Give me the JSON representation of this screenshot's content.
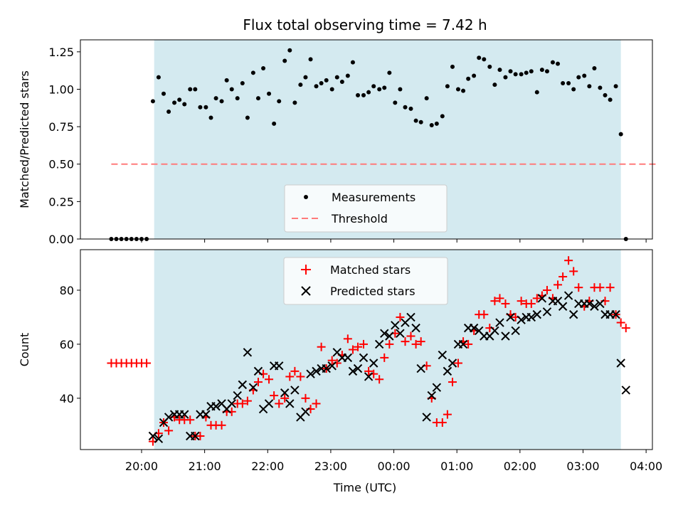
{
  "chart_data": {
    "title": "Flux total observing time = 7.42 h",
    "xlabel": "Time (UTC)",
    "x_tick_labels": [
      "20:00",
      "21:00",
      "22:00",
      "23:00",
      "00:00",
      "01:00",
      "02:00",
      "03:00",
      "04:00"
    ],
    "x_tick_hours": [
      20,
      21,
      22,
      23,
      24,
      25,
      26,
      27,
      28
    ],
    "xlim": [
      19.03,
      28.1
    ],
    "shaded_region": [
      20.2,
      27.6
    ],
    "colors": {
      "shade": "#d4eaf0",
      "measurement": "#000000",
      "threshold": "#ff7b7b",
      "matched": "#ff0000",
      "predicted": "#000000"
    },
    "panels": [
      {
        "type": "scatter",
        "ylabel": "Matched/Predicted stars",
        "ylim": [
          0,
          1.33
        ],
        "y_ticks": [
          0,
          0.25,
          0.5,
          0.75,
          1.0,
          1.25
        ],
        "y_tick_labels": [
          "0.00",
          "0.25",
          "0.50",
          "0.75",
          "1.00",
          "1.25"
        ],
        "threshold": {
          "y": 0.5,
          "x_range": [
            19.52,
            28.18
          ]
        },
        "legend": {
          "position": "lower-center",
          "entries": [
            "Measurements",
            "Threshold"
          ]
        },
        "series": [
          {
            "name": "Measurements",
            "marker": "dot",
            "x": [
              19.52,
              19.6,
              19.68,
              19.76,
              19.84,
              19.92,
              20.0,
              20.08,
              20.18,
              20.27,
              20.35,
              20.43,
              20.52,
              20.6,
              20.68,
              20.77,
              20.85,
              20.93,
              21.02,
              21.1,
              21.18,
              21.27,
              21.35,
              21.43,
              21.52,
              21.6,
              21.68,
              21.77,
              21.85,
              21.93,
              22.02,
              22.1,
              22.18,
              22.27,
              22.35,
              22.43,
              22.52,
              22.6,
              22.68,
              22.77,
              22.85,
              22.93,
              23.02,
              23.1,
              23.18,
              23.27,
              23.35,
              23.43,
              23.52,
              23.6,
              23.68,
              23.77,
              23.85,
              23.93,
              24.02,
              24.1,
              24.18,
              24.27,
              24.35,
              24.43,
              24.52,
              24.6,
              24.68,
              24.77,
              24.85,
              24.93,
              25.02,
              25.1,
              25.18,
              25.27,
              25.35,
              25.43,
              25.52,
              25.6,
              25.68,
              25.77,
              25.85,
              25.93,
              26.02,
              26.1,
              26.18,
              26.27,
              26.35,
              26.43,
              26.52,
              26.6,
              26.68,
              26.77,
              26.85,
              26.93,
              27.02,
              27.1,
              27.18,
              27.27,
              27.35,
              27.43,
              27.52,
              27.6,
              27.68
            ],
            "y": [
              0,
              0,
              0,
              0,
              0,
              0,
              0,
              0,
              0.92,
              1.08,
              0.97,
              0.85,
              0.91,
              0.93,
              0.9,
              1.0,
              1.0,
              0.88,
              0.88,
              0.81,
              0.94,
              0.92,
              1.06,
              1.0,
              0.94,
              1.04,
              0.81,
              1.11,
              0.94,
              1.14,
              0.97,
              0.77,
              0.92,
              1.19,
              1.26,
              0.91,
              1.03,
              1.08,
              1.2,
              1.02,
              1.04,
              1.06,
              1.0,
              1.08,
              1.05,
              1.09,
              1.18,
              0.96,
              0.96,
              0.98,
              1.02,
              1.0,
              1.01,
              1.11,
              0.91,
              1.0,
              0.88,
              0.87,
              0.79,
              0.78,
              0.94,
              0.76,
              0.77,
              0.82,
              1.02,
              1.15,
              1.0,
              0.99,
              1.07,
              1.09,
              1.21,
              1.2,
              1.15,
              1.03,
              1.13,
              1.08,
              1.12,
              1.1,
              1.1,
              1.11,
              1.12,
              0.98,
              1.13,
              1.12,
              1.18,
              1.17,
              1.04,
              1.04,
              1.0,
              1.08,
              1.09,
              1.02,
              1.14,
              1.01,
              0.96,
              0.93,
              1.02,
              0.7,
              0
            ]
          }
        ]
      },
      {
        "type": "scatter",
        "ylabel": "Count",
        "ylim": [
          21,
          95
        ],
        "y_ticks": [
          40,
          60,
          80
        ],
        "y_tick_labels": [
          "40",
          "60",
          "80"
        ],
        "legend": {
          "position": "upper-center",
          "entries": [
            "Matched stars",
            "Predicted stars"
          ]
        },
        "series": [
          {
            "name": "Matched stars",
            "marker": "plus",
            "x": [
              19.52,
              19.6,
              19.68,
              19.76,
              19.84,
              19.92,
              20.0,
              20.08,
              20.18,
              20.27,
              20.35,
              20.43,
              20.52,
              20.6,
              20.68,
              20.77,
              20.85,
              20.93,
              21.02,
              21.1,
              21.18,
              21.27,
              21.35,
              21.43,
              21.52,
              21.6,
              21.68,
              21.77,
              21.85,
              21.93,
              22.02,
              22.1,
              22.18,
              22.27,
              22.35,
              22.43,
              22.52,
              22.6,
              22.68,
              22.77,
              22.85,
              22.93,
              23.02,
              23.1,
              23.18,
              23.27,
              23.35,
              23.43,
              23.52,
              23.6,
              23.68,
              23.77,
              23.85,
              23.93,
              24.02,
              24.1,
              24.18,
              24.27,
              24.35,
              24.43,
              24.52,
              24.6,
              24.68,
              24.77,
              24.85,
              24.93,
              25.02,
              25.1,
              25.18,
              25.27,
              25.35,
              25.43,
              25.52,
              25.6,
              25.68,
              25.77,
              25.85,
              25.93,
              26.02,
              26.1,
              26.18,
              26.27,
              26.35,
              26.43,
              26.52,
              26.6,
              26.68,
              26.77,
              26.85,
              26.93,
              27.02,
              27.1,
              27.18,
              27.27,
              27.35,
              27.43,
              27.52,
              27.6,
              27.68
            ],
            "y": [
              53,
              53,
              53,
              53,
              53,
              53,
              53,
              53,
              24,
              27,
              31,
              28,
              33,
              32,
              32,
              32,
              26,
              26,
              33,
              30,
              30,
              30,
              35,
              35,
              38,
              38,
              39,
              43,
              46,
              49,
              47,
              41,
              38,
              40,
              48,
              50,
              48,
              40,
              36,
              38,
              59,
              51,
              54,
              53,
              56,
              62,
              58,
              59,
              60,
              50,
              49,
              47,
              55,
              60,
              64,
              70,
              61,
              63,
              60,
              61,
              52,
              40,
              31,
              31,
              34,
              46,
              53,
              61,
              60,
              65,
              71,
              71,
              66,
              76,
              77,
              75,
              71,
              70,
              76,
              75,
              75,
              77,
              78,
              80,
              77,
              82,
              85,
              91,
              87,
              81,
              74,
              76,
              81,
              81,
              76,
              81,
              71,
              68,
              66
            ]
          },
          {
            "name": "Predicted stars",
            "marker": "x",
            "x": [
              20.18,
              20.27,
              20.35,
              20.43,
              20.52,
              20.6,
              20.68,
              20.77,
              20.85,
              20.93,
              21.02,
              21.1,
              21.18,
              21.27,
              21.35,
              21.43,
              21.52,
              21.6,
              21.68,
              21.77,
              21.85,
              21.93,
              22.02,
              22.1,
              22.18,
              22.27,
              22.35,
              22.43,
              22.52,
              22.6,
              22.68,
              22.77,
              22.85,
              22.93,
              23.02,
              23.1,
              23.18,
              23.27,
              23.35,
              23.43,
              23.52,
              23.6,
              23.68,
              23.77,
              23.85,
              23.93,
              24.02,
              24.1,
              24.18,
              24.27,
              24.35,
              24.43,
              24.52,
              24.6,
              24.68,
              24.77,
              24.85,
              24.93,
              25.02,
              25.1,
              25.18,
              25.27,
              25.35,
              25.43,
              25.52,
              25.6,
              25.68,
              25.77,
              25.85,
              25.93,
              26.02,
              26.1,
              26.18,
              26.27,
              26.35,
              26.43,
              26.52,
              26.6,
              26.68,
              26.77,
              26.85,
              26.93,
              27.02,
              27.1,
              27.18,
              27.27,
              27.35,
              27.43,
              27.52,
              27.6,
              27.68
            ],
            "y": [
              26,
              25,
              31,
              33,
              34,
              34,
              34,
              26,
              26,
              34,
              34,
              37,
              37,
              38,
              36,
              38,
              41,
              45,
              57,
              44,
              50,
              36,
              38,
              52,
              52,
              42,
              38,
              43,
              33,
              35,
              49,
              50,
              51,
              51,
              52,
              57,
              55,
              55,
              50,
              51,
              55,
              48,
              53,
              60,
              64,
              63,
              67,
              64,
              68,
              70,
              66,
              51,
              33,
              41,
              44,
              56,
              50,
              53,
              60,
              60,
              66,
              66,
              65,
              63,
              63,
              65,
              68,
              63,
              70,
              65,
              69,
              70,
              70,
              71,
              77,
              72,
              76,
              76,
              74,
              78,
              71,
              75,
              75,
              75,
              74,
              75,
              71,
              71,
              71,
              53,
              43
            ]
          }
        ]
      }
    ]
  }
}
